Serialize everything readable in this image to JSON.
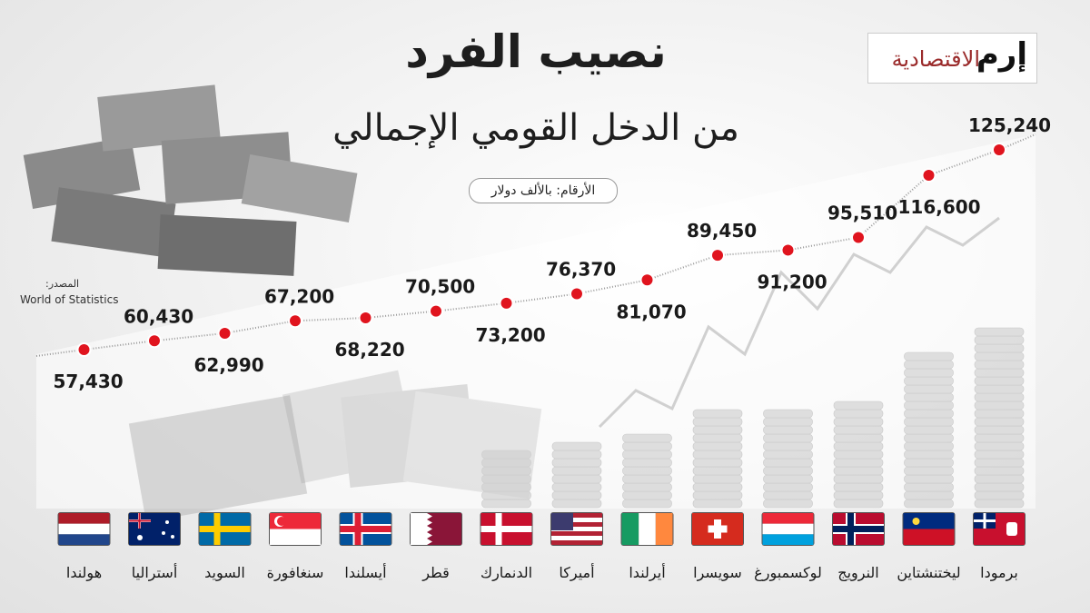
{
  "title": "نصيب الفرد",
  "subtitle": "من الدخل القومي الإجمالي",
  "unit_note": "الأرقام: بالألف دولار",
  "logo": {
    "main": "إرم",
    "sub": "الاقتصادية"
  },
  "source": {
    "label": "المصدر:",
    "value": "World of Statistics"
  },
  "colors": {
    "marker": "#e0141e",
    "line": "#9a9a9a",
    "text": "#1a1a1a"
  },
  "chart_data": {
    "type": "line",
    "categories": [
      "هولندا",
      "أستراليا",
      "السويد",
      "سنغافورة",
      "أيسلندا",
      "قطر",
      "الدنمارك",
      "أميركا",
      "أيرلندا",
      "سويسرا",
      "لوكسمبورغ",
      "النرويج",
      "ليختنشتاين",
      "برمودا"
    ],
    "value_labels": [
      "57,430",
      "60,430",
      "62,990",
      "67,200",
      "68,220",
      "70,500",
      "73,200",
      "76,370",
      "81,070",
      "89,450",
      "91,200",
      "95,510",
      "116,600",
      "125,240"
    ],
    "values": [
      57430,
      60430,
      62990,
      67200,
      68220,
      70500,
      73200,
      76370,
      81070,
      89450,
      91200,
      95510,
      116600,
      125240
    ],
    "flags": [
      "netherlands-flag",
      "australia-flag",
      "sweden-flag",
      "singapore-flag",
      "iceland-flag",
      "qatar-flag",
      "denmark-flag",
      "usa-flag",
      "ireland-flag",
      "switzerland-flag",
      "luxembourg-flag",
      "norway-flag",
      "liechtenstein-flag",
      "bermuda-flag"
    ]
  }
}
